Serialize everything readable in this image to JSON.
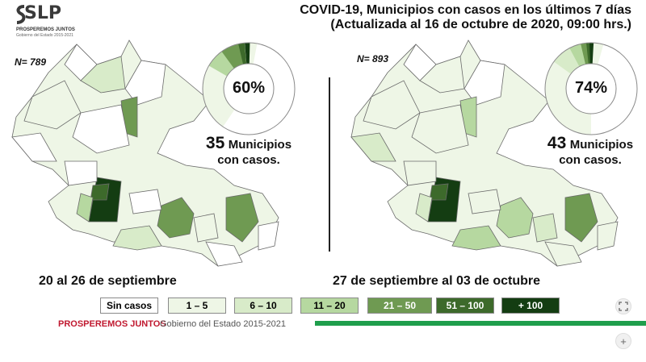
{
  "header": {
    "logo_text": "SLP",
    "logo_tagline": "PROSPEREMOS JUNTOS",
    "logo_subtagline": "Gobierno del Estado 2015-2021",
    "title_line1": "COVID-19, Municipios con casos en los últimos 7 días",
    "title_line2": "(Actualizada al 16 de octubre de 2020, 09:00 hrs.)"
  },
  "panels": [
    {
      "n_label": "N= 789",
      "percent": "60%",
      "percent_value": 60,
      "count": "35",
      "count_suffix": "Municipios",
      "count_line2": "con casos.",
      "period": "20 al 26 de septiembre"
    },
    {
      "n_label": "N= 893",
      "percent": "74%",
      "percent_value": 74,
      "count": "43",
      "count_suffix": "Municipios",
      "count_line2": "con casos.",
      "period": "27 de septiembre al 03 de octubre"
    }
  ],
  "legend": [
    {
      "label": "Sin casos",
      "color": "#ffffff"
    },
    {
      "label": "1 – 5",
      "color": "#eef6e6"
    },
    {
      "label": "6 – 10",
      "color": "#d8ebc9"
    },
    {
      "label": "11 – 20",
      "color": "#b6d8a0"
    },
    {
      "label": "21 – 50",
      "color": "#6f9a52"
    },
    {
      "label": "51 – 100",
      "color": "#3d6a2b"
    },
    {
      "label": "+ 100",
      "color": "#143d12"
    }
  ],
  "footer": {
    "left": "PROSPEREMOS JUNTOS",
    "right": "Gobierno del Estado 2015-2021"
  },
  "controls": {
    "fit_icon": "fit-screen-icon",
    "zoom_icon": "zoom-in-icon",
    "zoom_label": "+"
  }
}
